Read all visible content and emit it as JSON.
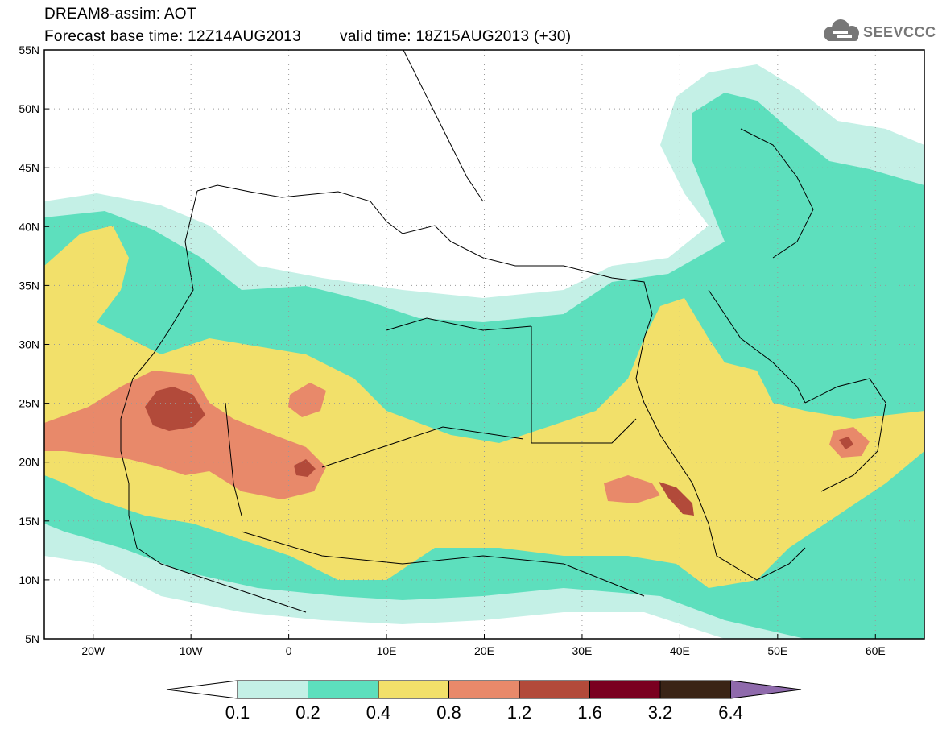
{
  "header": {
    "title": "DREAM8-assim: AOT",
    "base_time": "Forecast base time: 12Z14AUG2013",
    "valid_time": "valid time: 18Z15AUG2013 (+30)"
  },
  "logo": {
    "text": "SEEVCCC",
    "icon": "cloud-icon"
  },
  "map": {
    "lon_range": [
      -25,
      65
    ],
    "lat_range": [
      5,
      55
    ],
    "lon_ticks": [
      "20W",
      "10W",
      "0",
      "10E",
      "20E",
      "30E",
      "40E",
      "50E",
      "60E"
    ],
    "lat_ticks": [
      "5N",
      "10N",
      "15N",
      "20N",
      "25N",
      "30N",
      "35N",
      "40N",
      "45N",
      "50N",
      "55N"
    ],
    "grid": "dotted"
  },
  "colorbar": {
    "labels": [
      "0.1",
      "0.2",
      "0.4",
      "0.8",
      "1.2",
      "1.6",
      "3.2",
      "6.4"
    ],
    "colors": [
      "#ffffff",
      "#c4f0e6",
      "#5ddfbd",
      "#f2e06a",
      "#e8896a",
      "#b24a3a",
      "#7a0020",
      "#3a2416",
      "#8f6aac"
    ]
  }
}
